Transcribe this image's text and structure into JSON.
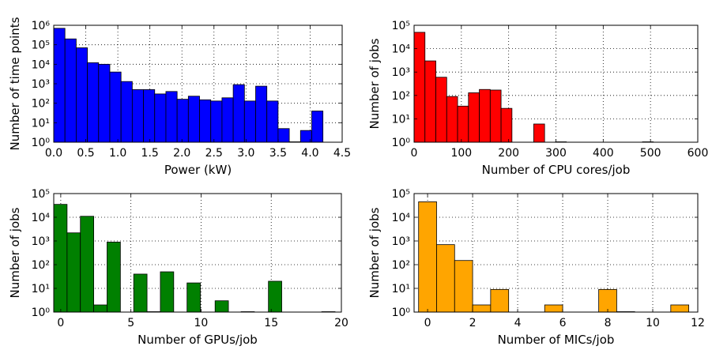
{
  "chart_data": [
    {
      "type": "bar",
      "scale_y": "log",
      "xlabel": "Power (kW)",
      "ylabel": "Number of time points",
      "xlim": [
        0,
        4.5
      ],
      "ylim": [
        1,
        1000000
      ],
      "xticks": [
        0.0,
        0.5,
        1.0,
        1.5,
        2.0,
        2.5,
        3.0,
        3.5,
        4.0,
        4.5
      ],
      "xtick_labels": [
        "0.0",
        "0.5",
        "1.0",
        "1.5",
        "2.0",
        "2.5",
        "3.0",
        "3.5",
        "4.0",
        "4.5"
      ],
      "yticks": [
        1,
        10,
        100,
        1000,
        10000,
        100000,
        1000000
      ],
      "color": "#0000ff",
      "grid": true,
      "bin_width": 0.175,
      "bins_start": [
        0,
        0.175,
        0.35,
        0.525,
        0.7,
        0.875,
        1.05,
        1.225,
        1.4,
        1.575,
        1.75,
        1.925,
        2.1,
        2.275,
        2.45,
        2.625,
        2.8,
        2.975,
        3.15,
        3.325,
        3.5,
        3.675,
        3.85,
        4.025
      ],
      "values": [
        700000,
        200000,
        70000,
        12000,
        10000,
        4000,
        1300,
        500,
        500,
        300,
        400,
        160,
        230,
        150,
        130,
        190,
        900,
        130,
        750,
        130,
        5,
        1,
        4,
        40
      ]
    },
    {
      "type": "bar",
      "scale_y": "log",
      "xlabel": "Number of CPU cores/job",
      "ylabel": "Number of jobs",
      "xlim": [
        0,
        600
      ],
      "ylim": [
        1,
        100000
      ],
      "xticks": [
        0,
        100,
        200,
        300,
        400,
        500,
        600
      ],
      "xtick_labels": [
        "0",
        "100",
        "200",
        "300",
        "400",
        "500",
        "600"
      ],
      "yticks": [
        1,
        10,
        100,
        1000,
        10000,
        100000
      ],
      "color": "#ff0000",
      "grid": true,
      "bin_width": 23,
      "bins_start": [
        0,
        23,
        46,
        69,
        92,
        115,
        138,
        161,
        184,
        207,
        253,
        299,
        483
      ],
      "values": [
        50000,
        3000,
        600,
        90,
        35,
        130,
        180,
        170,
        28,
        0,
        6,
        1,
        1
      ]
    },
    {
      "type": "bar",
      "scale_y": "log",
      "xlabel": "Number of GPUs/job",
      "ylabel": "Number of jobs",
      "xlim": [
        -0.5,
        20
      ],
      "ylim": [
        1,
        100000
      ],
      "xticks": [
        0,
        5,
        10,
        15,
        20
      ],
      "xtick_labels": [
        "0",
        "5",
        "10",
        "15",
        "20"
      ],
      "yticks": [
        1,
        10,
        100,
        1000,
        10000,
        100000
      ],
      "color": "#008000",
      "grid": true,
      "bin_width": 0.95,
      "bins_start": [
        -0.5,
        0.45,
        1.4,
        2.35,
        3.3,
        5.2,
        6.15,
        7.1,
        9.0,
        11.0,
        12.85,
        14.8,
        18.6
      ],
      "values": [
        35000,
        2200,
        11000,
        2,
        900,
        40,
        1,
        50,
        17,
        3,
        1,
        20,
        1
      ]
    },
    {
      "type": "bar",
      "scale_y": "log",
      "xlabel": "Number of MICs/job",
      "ylabel": "Number of jobs",
      "xlim": [
        -0.6,
        12
      ],
      "ylim": [
        1,
        100000
      ],
      "xticks": [
        0,
        2,
        4,
        6,
        8,
        10,
        12
      ],
      "xtick_labels": [
        "0",
        "2",
        "4",
        "6",
        "8",
        "10",
        "12"
      ],
      "yticks": [
        1,
        10,
        100,
        1000,
        10000,
        100000
      ],
      "color": "#ffa500",
      "grid": true,
      "bin_width": 0.8,
      "bins_start": [
        -0.4,
        0.4,
        1.2,
        2.0,
        2.8,
        5.2,
        7.6,
        8.4,
        10.8
      ],
      "values": [
        45000,
        700,
        150,
        2,
        9,
        2,
        9,
        1,
        2
      ]
    }
  ]
}
